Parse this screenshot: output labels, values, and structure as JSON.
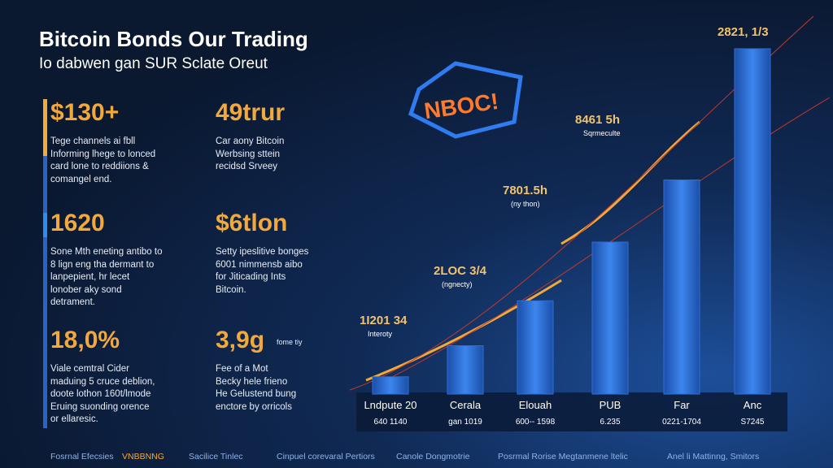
{
  "header": {
    "title": "Bitcoin Bonds Our Trading",
    "subtitle": "Io dabwen gan SUR Sclate Oreut"
  },
  "stats": [
    {
      "value": "$130+",
      "lines": [
        "Tege channels ai fbll",
        "Informing  lhege to lonced",
        "card lone to reddiions &",
        "comangel end."
      ]
    },
    {
      "value": "49trur",
      "lines": [
        "Car aony Bitcoin",
        "Werbsing sttein",
        "recidsd Srveey"
      ]
    },
    {
      "value": "1620",
      "lines": [
        "Sone Mth eneting antibo to",
        "8 lign eng tha dermant to",
        "lanpepient, hr lecet",
        "lonober aky sond",
        "detrament."
      ]
    },
    {
      "value": "$6tlon",
      "lines": [
        "Setty ipeslitive bonges",
        "6001 nimmensb aibo",
        "for Jiticading Ints",
        "Bitcoin."
      ]
    },
    {
      "value": "18,0%",
      "lines": [
        "Viale cemtral Cider",
        "maduing 5 cruce deblion,",
        "doote lothon 160t/lmode",
        "Eruing suonding orence",
        "or ellaresic."
      ]
    },
    {
      "value": "3,9g",
      "note": "fome tiy",
      "lines": [
        "Fee of a Mot",
        "Becky hele frieno",
        "He Gelustend bung",
        "enctore by orricols"
      ]
    }
  ],
  "badge": "NBOC!",
  "chart_data": {
    "type": "bar",
    "categories": [
      "Lndpute 20",
      "Cerala",
      "Elouah",
      "PUB",
      "Far",
      "Anc"
    ],
    "category_notes": [
      "640 1140",
      "gan 1019",
      "600-- 1598",
      "6.235",
      "0221-1704",
      "S7245"
    ],
    "values": [
      5,
      14,
      27,
      44,
      62,
      100
    ],
    "ylim": [
      0,
      100
    ],
    "color": "#2f6fd6",
    "annotations": [
      {
        "text": "1I201 34",
        "note": "Interoty"
      },
      {
        "text": "2LOC 3/4",
        "note": "(ngnecty)"
      },
      {
        "text": "7801.5h",
        "note": "(ny thon)"
      },
      {
        "text": "8461 5h",
        "note": "Sqrmeculte"
      },
      {
        "text": "2821, 1/3"
      }
    ]
  },
  "footer": [
    "Fosrnal Efecsies",
    "VNBBNNG",
    "Sacilice Tinlec",
    "Cinpuel corevaral Pertiors",
    "Canole Dongmotrie",
    "Posrmal Rorise Megtanmene ltelic",
    "Anel li Mattinng, Smitors"
  ]
}
